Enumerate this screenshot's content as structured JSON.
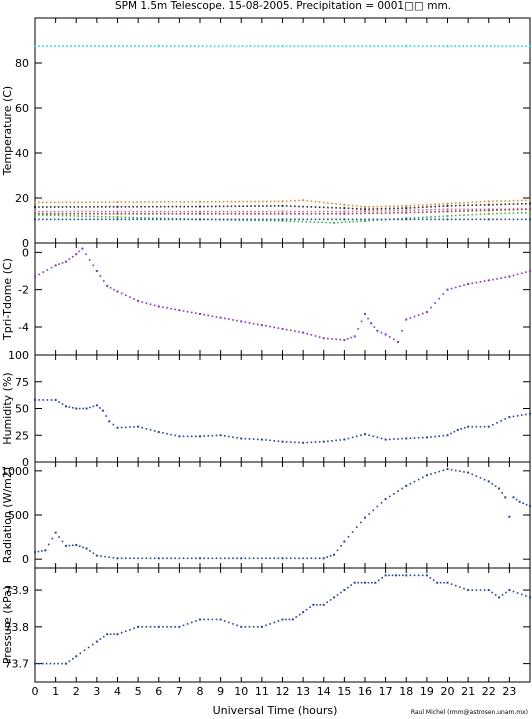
{
  "title": "SPM 1.5m Telescope. 15-08-2005. Precipitation = 0001□□ mm.",
  "xlabel": "Universal Time (hours)",
  "credit": "Raul Michel (rmm@astrosen.unam.mx)",
  "chart_data": [
    {
      "type": "scatter",
      "ylabel": "Temperature (C)",
      "xlim": [
        0,
        24
      ],
      "ylim": [
        0,
        100
      ],
      "yticks": [
        0,
        20,
        40,
        60,
        80
      ],
      "series": [
        {
          "color": "#00e5ee",
          "x": [
            0,
            6,
            12,
            18,
            20,
            24
          ],
          "y": [
            87.5,
            87.5,
            87.5,
            87.5,
            87.5,
            87.5
          ]
        },
        {
          "color": "#f08a24",
          "x": [
            0,
            4,
            8,
            12,
            13,
            15,
            16,
            18,
            20,
            22,
            24
          ],
          "y": [
            18,
            18.2,
            18.3,
            18.5,
            19,
            17,
            16,
            16.5,
            17.5,
            18.5,
            19
          ]
        },
        {
          "color": "#2a2a2a",
          "x": [
            0,
            4,
            8,
            12,
            15,
            16,
            18,
            20,
            22,
            24
          ],
          "y": [
            16,
            16.1,
            16.2,
            16.5,
            15.5,
            15,
            15.5,
            16.5,
            17,
            17.5
          ]
        },
        {
          "color": "#d06ab0",
          "x": [
            0,
            4,
            8,
            12,
            15,
            16,
            18,
            20,
            22,
            24
          ],
          "y": [
            14,
            14,
            14,
            14,
            14,
            14.2,
            14.5,
            15,
            15,
            15.2
          ]
        },
        {
          "color": "#b03030",
          "x": [
            0,
            4,
            8,
            12,
            15,
            18,
            20,
            22,
            24
          ],
          "y": [
            13,
            13,
            13,
            13,
            13,
            13.5,
            14,
            14.5,
            15
          ]
        },
        {
          "color": "#22cc22",
          "x": [
            0,
            4,
            8,
            12,
            14.5,
            16,
            18,
            20,
            22,
            24
          ],
          "y": [
            12.5,
            11.5,
            10.5,
            9.8,
            9,
            9.8,
            11,
            12,
            13,
            13.5
          ]
        },
        {
          "color": "#1f3fcc",
          "x": [
            0,
            4,
            8,
            12,
            15,
            18,
            20,
            22,
            24
          ],
          "y": [
            10.5,
            10.5,
            10.5,
            10.5,
            10.5,
            10.5,
            10.5,
            10.5,
            10.5
          ]
        }
      ]
    },
    {
      "type": "scatter",
      "ylabel": "Tpri-Tdome (C)",
      "xlim": [
        0,
        24
      ],
      "ylim": [
        -5.5,
        0.5
      ],
      "yticks": [
        0,
        -2,
        -4
      ],
      "series": [
        {
          "color": "#8a2be2",
          "x": [
            0,
            1,
            1.5,
            2,
            2.3,
            3,
            3.5,
            4,
            5,
            6,
            7,
            8,
            9,
            10,
            11,
            12,
            13,
            14,
            15,
            15.5,
            16,
            16.3,
            16.6,
            17,
            17.6,
            18,
            19,
            20,
            21,
            22,
            23,
            24
          ],
          "y": [
            -1.3,
            -0.7,
            -0.5,
            -0.1,
            0.2,
            -1.0,
            -1.8,
            -2.1,
            -2.6,
            -2.9,
            -3.1,
            -3.3,
            -3.5,
            -3.7,
            -3.9,
            -4.1,
            -4.3,
            -4.6,
            -4.7,
            -4.5,
            -3.3,
            -3.8,
            -4.2,
            -4.4,
            -4.8,
            -3.6,
            -3.2,
            -2.0,
            -1.7,
            -1.5,
            -1.3,
            -1.0
          ]
        }
      ]
    },
    {
      "type": "scatter",
      "ylabel": "Humidity (%)",
      "xlim": [
        0,
        24
      ],
      "ylim": [
        0,
        100
      ],
      "yticks": [
        0,
        25,
        50,
        75,
        100
      ],
      "series": [
        {
          "color": "#1f3fcc",
          "x": [
            0,
            1,
            1.5,
            2,
            2.5,
            3,
            3.3,
            3.6,
            4,
            5,
            6,
            7,
            8,
            9,
            10,
            11,
            12,
            13,
            14,
            15,
            16,
            17,
            18,
            19,
            20,
            20.5,
            21,
            22,
            23,
            24
          ],
          "y": [
            58,
            58,
            52,
            50,
            50,
            53,
            48,
            38,
            32,
            33,
            28,
            24,
            24,
            25,
            22,
            21,
            19,
            18,
            19,
            21,
            26,
            21,
            22,
            23,
            25,
            30,
            33,
            33,
            42,
            45
          ]
        }
      ]
    },
    {
      "type": "scatter",
      "ylabel": "Radiation (W/m2)",
      "xlim": [
        0,
        24
      ],
      "ylim": [
        -100,
        1100
      ],
      "yticks": [
        0,
        500,
        1000
      ],
      "series": [
        {
          "color": "#1f3fcc",
          "x": [
            0,
            0.5,
            1,
            1.5,
            2,
            2.5,
            3,
            4,
            6,
            8,
            10,
            12,
            14,
            14.5,
            15,
            16,
            17,
            18,
            19,
            20,
            21,
            22,
            22.5,
            22.8,
            23,
            23.2,
            23.5,
            24
          ],
          "y": [
            80,
            100,
            300,
            150,
            160,
            120,
            40,
            10,
            10,
            10,
            10,
            10,
            10,
            50,
            200,
            470,
            680,
            830,
            950,
            1020,
            980,
            880,
            800,
            700,
            480,
            700,
            650,
            600
          ]
        }
      ]
    },
    {
      "type": "scatter",
      "ylabel": "Pressure (kPa)",
      "xlim": [
        0,
        24
      ],
      "ylim": [
        73.65,
        73.96
      ],
      "yticks": [
        73.7,
        73.8,
        73.9
      ],
      "series": [
        {
          "color": "#1f3fcc",
          "x": [
            0,
            1.5,
            2,
            3,
            3.5,
            4,
            5,
            6,
            7,
            8,
            9,
            10,
            11,
            12,
            12.5,
            13,
            13.5,
            14,
            14.5,
            15,
            15.5,
            16,
            16.5,
            17,
            17.5,
            18,
            19,
            19.5,
            20,
            21,
            22,
            22.5,
            23,
            24
          ],
          "y": [
            73.7,
            73.7,
            73.72,
            73.76,
            73.78,
            73.78,
            73.8,
            73.8,
            73.8,
            73.82,
            73.82,
            73.8,
            73.8,
            73.82,
            73.82,
            73.84,
            73.86,
            73.86,
            73.88,
            73.9,
            73.92,
            73.92,
            73.92,
            73.94,
            73.94,
            73.94,
            73.94,
            73.92,
            73.92,
            73.9,
            73.9,
            73.88,
            73.9,
            73.88
          ]
        }
      ]
    }
  ]
}
